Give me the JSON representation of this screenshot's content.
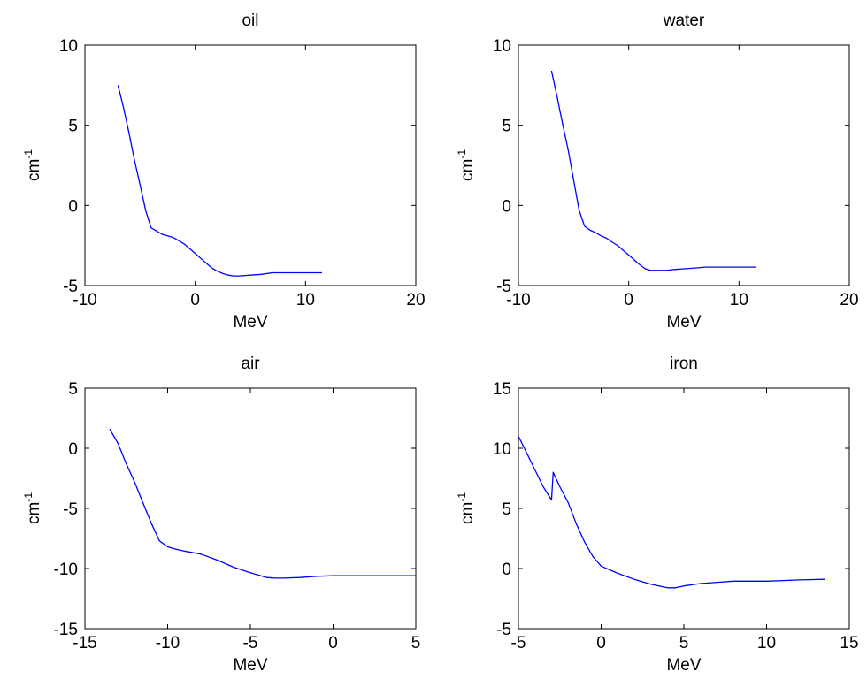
{
  "colors": {
    "background": "#ffffff",
    "axes": "#000000",
    "series": "#0000ff"
  },
  "chart_data": [
    {
      "type": "line",
      "title": "oil",
      "xlabel": "MeV",
      "ylabel": {
        "base": "cm",
        "sup": "-1"
      },
      "xlim": [
        -10,
        20
      ],
      "ylim": [
        -5,
        10
      ],
      "xticks": [
        -10,
        0,
        10,
        20
      ],
      "yticks": [
        -5,
        0,
        5,
        10
      ],
      "xtick_labels": [
        "-10",
        "0",
        "10",
        "20"
      ],
      "ytick_labels": [
        "-5",
        "0",
        "5",
        "10"
      ],
      "grid": false,
      "series": [
        {
          "x": [
            -7.0,
            -6.5,
            -6.0,
            -5.5,
            -5.0,
            -4.5,
            -4.0,
            -3.5,
            -3.0,
            -2.5,
            -2.0,
            -1.5,
            -1.0,
            -0.5,
            0.0,
            0.5,
            1.0,
            1.5,
            2.0,
            2.5,
            3.0,
            3.5,
            4.0,
            5.0,
            6.0,
            7.0,
            8.0,
            9.0,
            10.0,
            11.5
          ],
          "y": [
            7.5,
            6.1,
            4.5,
            2.8,
            1.3,
            -0.3,
            -1.4,
            -1.6,
            -1.8,
            -1.9,
            -2.0,
            -2.2,
            -2.4,
            -2.7,
            -3.0,
            -3.3,
            -3.6,
            -3.9,
            -4.1,
            -4.25,
            -4.35,
            -4.4,
            -4.4,
            -4.35,
            -4.3,
            -4.2,
            -4.2,
            -4.2,
            -4.2,
            -4.2
          ]
        }
      ]
    },
    {
      "type": "line",
      "title": "water",
      "xlabel": "MeV",
      "ylabel": {
        "base": "cm",
        "sup": "-1"
      },
      "xlim": [
        -10,
        20
      ],
      "ylim": [
        -5,
        10
      ],
      "xticks": [
        -10,
        0,
        10,
        20
      ],
      "yticks": [
        -5,
        0,
        5,
        10
      ],
      "xtick_labels": [
        "-10",
        "0",
        "10",
        "20"
      ],
      "ytick_labels": [
        "-5",
        "0",
        "5",
        "10"
      ],
      "grid": false,
      "series": [
        {
          "x": [
            -7.0,
            -6.5,
            -6.0,
            -5.5,
            -5.0,
            -4.5,
            -4.0,
            -3.5,
            -3.0,
            -2.5,
            -2.0,
            -1.5,
            -1.0,
            -0.5,
            0.0,
            0.5,
            1.0,
            1.5,
            2.0,
            2.5,
            3.0,
            3.5,
            4.0,
            5.0,
            6.0,
            7.0,
            8.0,
            9.0,
            10.0,
            11.5
          ],
          "y": [
            8.4,
            6.8,
            5.1,
            3.5,
            1.6,
            -0.3,
            -1.3,
            -1.55,
            -1.7,
            -1.9,
            -2.05,
            -2.3,
            -2.5,
            -2.8,
            -3.1,
            -3.4,
            -3.7,
            -3.95,
            -4.05,
            -4.05,
            -4.05,
            -4.05,
            -4.0,
            -3.95,
            -3.9,
            -3.85,
            -3.85,
            -3.85,
            -3.85,
            -3.85
          ]
        }
      ]
    },
    {
      "type": "line",
      "title": "air",
      "xlabel": "MeV",
      "ylabel": {
        "base": "cm",
        "sup": "-1"
      },
      "xlim": [
        -15,
        5
      ],
      "ylim": [
        -15,
        5
      ],
      "xticks": [
        -15,
        -10,
        -5,
        0,
        5
      ],
      "yticks": [
        -15,
        -10,
        -5,
        0,
        5
      ],
      "xtick_labels": [
        "-15",
        "-10",
        "-5",
        "0",
        "5"
      ],
      "ytick_labels": [
        "-15",
        "-10",
        "-5",
        "0",
        "5"
      ],
      "grid": false,
      "series": [
        {
          "x": [
            -13.5,
            -13.0,
            -12.5,
            -12.0,
            -11.5,
            -11.0,
            -10.5,
            -10.0,
            -9.5,
            -9.0,
            -8.0,
            -7.0,
            -6.0,
            -5.0,
            -4.0,
            -3.5,
            -3.0,
            -2.0,
            -1.0,
            0.0,
            1.0,
            2.0,
            3.0,
            4.0,
            5.0
          ],
          "y": [
            1.6,
            0.4,
            -1.3,
            -2.8,
            -4.5,
            -6.2,
            -7.7,
            -8.2,
            -8.4,
            -8.55,
            -8.8,
            -9.3,
            -9.9,
            -10.35,
            -10.75,
            -10.8,
            -10.8,
            -10.75,
            -10.65,
            -10.6,
            -10.6,
            -10.6,
            -10.6,
            -10.6,
            -10.6
          ]
        }
      ]
    },
    {
      "type": "line",
      "title": "iron",
      "xlabel": "MeV",
      "ylabel": {
        "base": "cm",
        "sup": "-1"
      },
      "xlim": [
        -5,
        15
      ],
      "ylim": [
        -5,
        15
      ],
      "xticks": [
        -5,
        0,
        5,
        10,
        15
      ],
      "yticks": [
        -5,
        0,
        5,
        10,
        15
      ],
      "xtick_labels": [
        "-5",
        "0",
        "5",
        "10",
        "15"
      ],
      "ytick_labels": [
        "-5",
        "0",
        "5",
        "10",
        "15"
      ],
      "grid": false,
      "series": [
        {
          "x": [
            -5.0,
            -4.5,
            -4.0,
            -3.5,
            -3.0,
            -2.9,
            -2.5,
            -2.0,
            -1.5,
            -1.0,
            -0.5,
            0.0,
            0.5,
            1.0,
            2.0,
            3.0,
            4.0,
            4.5,
            5.0,
            6.0,
            7.0,
            8.0,
            9.0,
            10.0,
            11.0,
            12.0,
            13.5
          ],
          "y": [
            11.0,
            9.6,
            8.2,
            6.8,
            5.7,
            8.0,
            6.8,
            5.5,
            3.7,
            2.2,
            1.0,
            0.2,
            -0.1,
            -0.4,
            -0.9,
            -1.3,
            -1.6,
            -1.6,
            -1.45,
            -1.25,
            -1.15,
            -1.05,
            -1.05,
            -1.05,
            -1.0,
            -0.95,
            -0.9
          ]
        }
      ]
    }
  ]
}
